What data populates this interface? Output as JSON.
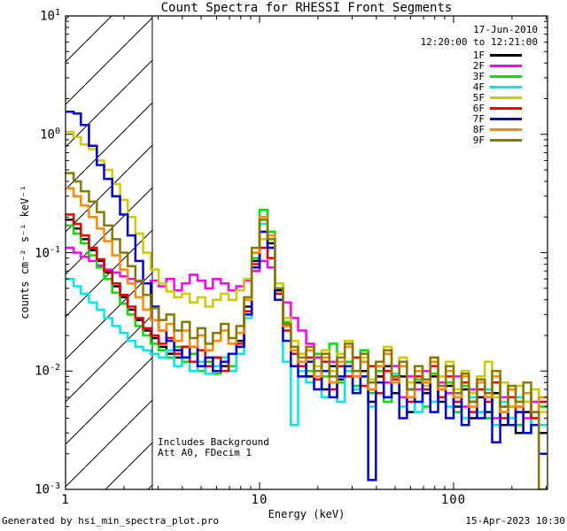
{
  "title": "Count Spectra for RHESSI Front Segments",
  "header": {
    "date": "17-Jun-2010",
    "time_range": "12:20:00 to 12:21:00"
  },
  "annotations": {
    "line1": "Includes Background",
    "line2": "Att A0, FDecim 1"
  },
  "footer": {
    "left": "Generated by hsi_min_spectra_plot.pro",
    "right": "15-Apr-2023 10:30"
  },
  "chart_data": {
    "type": "line",
    "subtype": "histogram-step-log-log-spectra",
    "title": "Count Spectra for RHESSI Front Segments",
    "xlabel": "Energy (keV)",
    "ylabel": "counts cm⁻² s⁻¹ keV⁻¹",
    "xscale": "log",
    "yscale": "log",
    "xlim": [
      1,
      305
    ],
    "ylim": [
      0.001,
      10
    ],
    "grid": false,
    "legend_position": "top-right",
    "x_ticks": [
      {
        "v": 1,
        "label": "1"
      },
      {
        "v": 10,
        "label": "10"
      },
      {
        "v": 100,
        "label": "100"
      }
    ],
    "y_ticks": [
      {
        "v": 10,
        "base": "10",
        "exp": "1"
      },
      {
        "v": 1,
        "base": "10",
        "exp": "0"
      },
      {
        "v": 0.1,
        "base": "10",
        "exp": "-1"
      },
      {
        "v": 0.01,
        "base": "10",
        "exp": "-2"
      },
      {
        "v": 0.001,
        "base": "10",
        "exp": "-3"
      }
    ],
    "hatch_region": {
      "from_keV": 1.0,
      "to_keV": 2.8,
      "style": "diagonal-hatch",
      "color": "#000000"
    },
    "energies_keV": [
      1.0,
      1.1,
      1.2,
      1.32,
      1.45,
      1.58,
      1.74,
      1.91,
      2.09,
      2.29,
      2.51,
      2.75,
      3.02,
      3.31,
      3.63,
      3.98,
      4.37,
      4.79,
      5.25,
      5.75,
      6.31,
      6.92,
      7.59,
      8.32,
      9.12,
      10.0,
      11.0,
      12.0,
      13.2,
      14.5,
      15.8,
      17.4,
      19.1,
      20.9,
      22.9,
      25.1,
      27.5,
      30.2,
      33.1,
      36.3,
      39.8,
      43.7,
      47.9,
      52.5,
      57.5,
      63.1,
      69.2,
      75.9,
      83.2,
      91.2,
      100,
      110,
      120,
      132,
      145,
      158,
      174,
      191,
      209,
      229,
      251,
      275,
      302
    ],
    "series": [
      {
        "name": "1F",
        "color": "#000000",
        "values": [
          0.19,
          0.16,
          0.13,
          0.105,
          0.085,
          0.068,
          0.052,
          0.042,
          0.033,
          0.027,
          0.022,
          0.019,
          0.016,
          0.014,
          0.013,
          0.016,
          0.012,
          0.011,
          0.0095,
          0.013,
          0.011,
          0.014,
          0.018,
          0.035,
          0.085,
          0.15,
          0.12,
          0.048,
          0.024,
          0.015,
          0.012,
          0.009,
          0.013,
          0.007,
          0.011,
          0.0085,
          0.012,
          0.0065,
          0.01,
          0.0055,
          0.009,
          0.011,
          0.0065,
          0.009,
          0.0045,
          0.008,
          0.0065,
          0.009,
          0.0055,
          0.0075,
          0.005,
          0.007,
          0.004,
          0.006,
          0.0045,
          0.0065,
          0.0035,
          0.005,
          0.003,
          0.0045,
          0.0035,
          0.003
        ]
      },
      {
        "name": "2F",
        "color": "#ff00ff",
        "values": [
          0.11,
          0.1,
          0.092,
          0.085,
          0.078,
          0.072,
          0.068,
          0.063,
          0.06,
          0.057,
          0.055,
          0.058,
          0.052,
          0.06,
          0.048,
          0.055,
          0.065,
          0.058,
          0.05,
          0.06,
          0.055,
          0.048,
          0.052,
          0.058,
          0.07,
          0.085,
          0.075,
          0.05,
          0.038,
          0.028,
          0.022,
          0.017,
          0.013,
          0.01,
          0.012,
          0.008,
          0.011,
          0.009,
          0.012,
          0.007,
          0.01,
          0.008,
          0.011,
          0.006,
          0.009,
          0.007,
          0.01,
          0.0055,
          0.008,
          0.0065,
          0.009,
          0.005,
          0.007,
          0.0045,
          0.0065,
          0.004,
          0.006,
          0.0035,
          0.005,
          0.004,
          0.0055,
          0.0035
        ]
      },
      {
        "name": "3F",
        "color": "#00e100",
        "values": [
          0.17,
          0.145,
          0.12,
          0.095,
          0.075,
          0.06,
          0.046,
          0.037,
          0.03,
          0.024,
          0.02,
          0.017,
          0.015,
          0.013,
          0.016,
          0.012,
          0.014,
          0.01,
          0.012,
          0.0095,
          0.013,
          0.011,
          0.016,
          0.03,
          0.09,
          0.23,
          0.15,
          0.055,
          0.026,
          0.016,
          0.012,
          0.01,
          0.014,
          0.009,
          0.017,
          0.008,
          0.012,
          0.0075,
          0.015,
          0.0065,
          0.01,
          0.0055,
          0.009,
          0.012,
          0.006,
          0.0085,
          0.005,
          0.0095,
          0.006,
          0.008,
          0.0045,
          0.0075,
          0.0055,
          0.008,
          0.004,
          0.006,
          0.0045,
          0.007,
          0.0035,
          0.0055,
          0.004,
          0.005
        ]
      },
      {
        "name": "4F",
        "color": "#00e8e8",
        "values": [
          0.06,
          0.052,
          0.045,
          0.038,
          0.033,
          0.028,
          0.024,
          0.021,
          0.018,
          0.016,
          0.015,
          0.014,
          0.013,
          0.015,
          0.011,
          0.013,
          0.01,
          0.012,
          0.0095,
          0.011,
          0.013,
          0.01,
          0.014,
          0.028,
          0.1,
          0.175,
          0.13,
          0.04,
          0.012,
          0.0035,
          0.01,
          0.008,
          0.011,
          0.006,
          0.009,
          0.0055,
          0.01,
          0.007,
          0.009,
          0.005,
          0.008,
          0.006,
          0.0095,
          0.005,
          0.007,
          0.0045,
          0.008,
          0.0055,
          0.0075,
          0.005,
          0.0065,
          0.004,
          0.006,
          0.0045,
          0.007,
          0.0035,
          0.0055,
          0.004,
          0.006,
          0.003,
          0.0045,
          0.0035
        ]
      },
      {
        "name": "5F",
        "color": "#cccc00",
        "values": [
          1.05,
          0.95,
          0.82,
          0.75,
          0.6,
          0.5,
          0.38,
          0.28,
          0.2,
          0.145,
          0.1,
          0.072,
          0.055,
          0.047,
          0.042,
          0.045,
          0.038,
          0.042,
          0.035,
          0.04,
          0.045,
          0.04,
          0.048,
          0.06,
          0.1,
          0.13,
          0.11,
          0.055,
          0.028,
          0.018,
          0.014,
          0.016,
          0.011,
          0.015,
          0.01,
          0.014,
          0.018,
          0.01,
          0.013,
          0.0085,
          0.012,
          0.016,
          0.009,
          0.013,
          0.008,
          0.011,
          0.0075,
          0.013,
          0.009,
          0.012,
          0.007,
          0.01,
          0.0065,
          0.009,
          0.012,
          0.006,
          0.008,
          0.005,
          0.0075,
          0.0055,
          0.007,
          0.0045
        ]
      },
      {
        "name": "6F",
        "color": "#ee0000",
        "values": [
          0.21,
          0.175,
          0.14,
          0.11,
          0.088,
          0.07,
          0.055,
          0.044,
          0.035,
          0.028,
          0.023,
          0.02,
          0.017,
          0.019,
          0.014,
          0.016,
          0.012,
          0.015,
          0.011,
          0.013,
          0.01,
          0.014,
          0.017,
          0.032,
          0.08,
          0.11,
          0.09,
          0.045,
          0.022,
          0.014,
          0.011,
          0.013,
          0.0085,
          0.012,
          0.007,
          0.011,
          0.009,
          0.013,
          0.0075,
          0.011,
          0.0065,
          0.01,
          0.0085,
          0.012,
          0.0055,
          0.009,
          0.007,
          0.011,
          0.006,
          0.009,
          0.0055,
          0.008,
          0.0045,
          0.007,
          0.0055,
          0.008,
          0.004,
          0.006,
          0.0045,
          0.0065,
          0.004,
          0.0055
        ]
      },
      {
        "name": "7F",
        "color": "#0000e6",
        "values": [
          1.55,
          1.5,
          1.2,
          0.8,
          0.55,
          0.42,
          0.3,
          0.21,
          0.14,
          0.085,
          0.055,
          0.035,
          0.022,
          0.018,
          0.015,
          0.013,
          0.016,
          0.011,
          0.013,
          0.01,
          0.012,
          0.014,
          0.016,
          0.03,
          0.075,
          0.15,
          0.11,
          0.04,
          0.018,
          0.011,
          0.009,
          0.012,
          0.007,
          0.01,
          0.006,
          0.009,
          0.011,
          0.0065,
          0.009,
          0.0012,
          0.008,
          0.006,
          0.009,
          0.004,
          0.007,
          0.0055,
          0.008,
          0.0045,
          0.007,
          0.004,
          0.006,
          0.0035,
          0.0055,
          0.004,
          0.006,
          0.0025,
          0.005,
          0.0035,
          0.0045,
          0.003,
          0.0035,
          0.002
        ]
      },
      {
        "name": "8F",
        "color": "#ff8800",
        "values": [
          0.35,
          0.3,
          0.25,
          0.2,
          0.16,
          0.125,
          0.095,
          0.072,
          0.055,
          0.042,
          0.033,
          0.027,
          0.022,
          0.025,
          0.018,
          0.022,
          0.016,
          0.02,
          0.015,
          0.018,
          0.022,
          0.017,
          0.021,
          0.04,
          0.1,
          0.2,
          0.14,
          0.05,
          0.024,
          0.015,
          0.012,
          0.015,
          0.009,
          0.013,
          0.008,
          0.012,
          0.016,
          0.009,
          0.012,
          0.007,
          0.011,
          0.014,
          0.008,
          0.011,
          0.006,
          0.01,
          0.008,
          0.012,
          0.007,
          0.01,
          0.006,
          0.009,
          0.005,
          0.008,
          0.006,
          0.009,
          0.0045,
          0.007,
          0.005,
          0.0065,
          0.0045,
          0.006
        ]
      },
      {
        "name": "9F",
        "color": "#847a00",
        "values": [
          0.47,
          0.4,
          0.33,
          0.27,
          0.22,
          0.17,
          0.13,
          0.1,
          0.077,
          0.058,
          0.044,
          0.034,
          0.027,
          0.03,
          0.022,
          0.026,
          0.019,
          0.023,
          0.017,
          0.021,
          0.025,
          0.019,
          0.024,
          0.042,
          0.11,
          0.19,
          0.13,
          0.05,
          0.025,
          0.016,
          0.013,
          0.016,
          0.01,
          0.014,
          0.009,
          0.013,
          0.017,
          0.01,
          0.014,
          0.008,
          0.012,
          0.015,
          0.009,
          0.012,
          0.007,
          0.011,
          0.0085,
          0.013,
          0.0075,
          0.011,
          0.0065,
          0.0095,
          0.0055,
          0.0085,
          0.0065,
          0.01,
          0.005,
          0.0075,
          0.0055,
          0.008,
          0.0045,
          0.001
        ]
      }
    ]
  }
}
